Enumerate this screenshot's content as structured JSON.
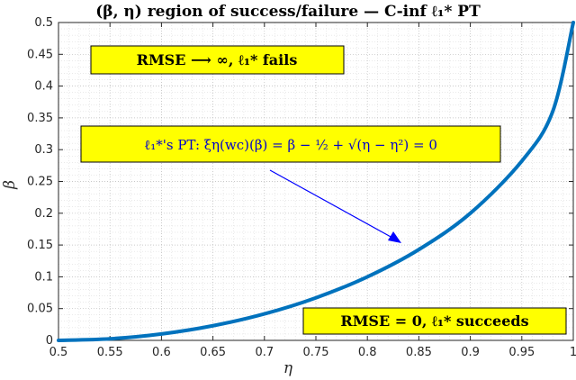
{
  "chart_data": {
    "type": "line",
    "title": "(β, η) region of success/failure — C-inf ℓ₁* PT",
    "xlabel": "η",
    "ylabel": "β",
    "xlim": [
      0.5,
      1.0
    ],
    "ylim": [
      0,
      0.5
    ],
    "x_ticks": [
      "0.5",
      "0.55",
      "0.6",
      "0.65",
      "0.7",
      "0.75",
      "0.8",
      "0.85",
      "0.9",
      "0.95",
      "1"
    ],
    "y_ticks": [
      "0",
      "0.05",
      "0.1",
      "0.15",
      "0.2",
      "0.25",
      "0.3",
      "0.35",
      "0.4",
      "0.45",
      "0.5"
    ],
    "grid": true,
    "series": [
      {
        "x": [
          0.5,
          0.55,
          0.6,
          0.65,
          0.7,
          0.75,
          0.8,
          0.85,
          0.9,
          0.95,
          0.98,
          1.0
        ],
        "y": [
          0.0,
          0.0025,
          0.0101,
          0.023,
          0.0417,
          0.067,
          0.1,
          0.1429,
          0.2,
          0.2821,
          0.36,
          0.5
        ],
        "color": "#0072BD"
      }
    ],
    "annotations": [
      {
        "text": "RMSE ⟶ ∞, ℓ₁*  fails"
      },
      {
        "text": "ℓ₁*'s PT: ξη(wc)(β) = β − ½ + √(η − η²) = 0"
      },
      {
        "text": "RMSE = 0, ℓ₁* succeeds"
      }
    ]
  },
  "colors": {
    "curve": "#0072BD",
    "box_fill": "#FFFF00",
    "arrow": "#0000FF",
    "annotation_blue": "#0000CC"
  }
}
